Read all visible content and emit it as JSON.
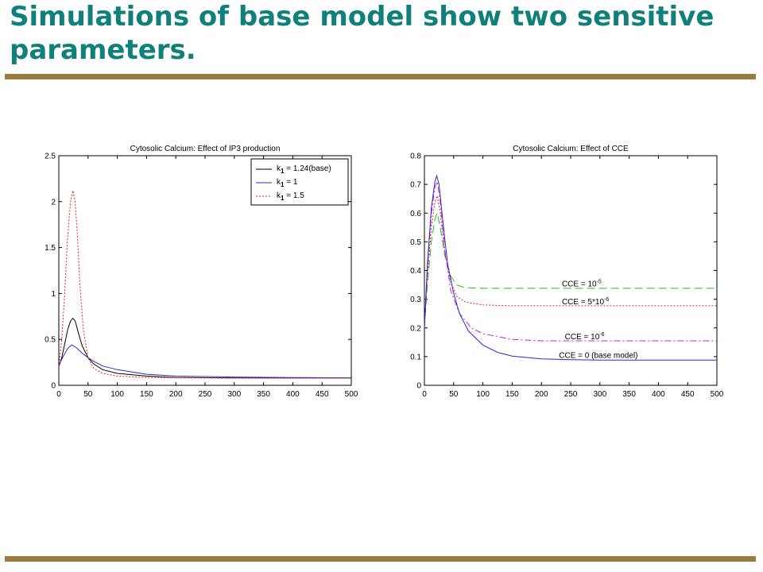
{
  "slide": {
    "title": "Simulations of base model show two sensitive parameters.",
    "accent_color": "#10807a",
    "rule_color": "#9b7c3e"
  },
  "chart_data": [
    {
      "type": "line",
      "title": "Cytosolic Calcium: Effect of IP3 production",
      "xlabel": "",
      "ylabel": "",
      "xlim": [
        0,
        500
      ],
      "ylim": [
        0,
        2.5
      ],
      "xticks": [
        "0",
        "50",
        "100",
        "150",
        "200",
        "250",
        "300",
        "350",
        "400",
        "450",
        "500"
      ],
      "yticks": [
        "0",
        "0.5",
        "1",
        "1.5",
        "2",
        "2.5"
      ],
      "grid": false,
      "legend_position": "top-right",
      "series": [
        {
          "legend_parts": [
            "k",
            "1",
            " = 1.24(base)"
          ],
          "color": "#000000",
          "dash": "none",
          "points": [
            [
              0,
              0.2
            ],
            [
              5,
              0.3
            ],
            [
              10,
              0.45
            ],
            [
              15,
              0.6
            ],
            [
              20,
              0.7
            ],
            [
              24,
              0.73
            ],
            [
              28,
              0.7
            ],
            [
              33,
              0.58
            ],
            [
              40,
              0.43
            ],
            [
              50,
              0.3
            ],
            [
              60,
              0.23
            ],
            [
              75,
              0.17
            ],
            [
              100,
              0.13
            ],
            [
              150,
              0.1
            ],
            [
              200,
              0.085
            ],
            [
              300,
              0.08
            ],
            [
              400,
              0.08
            ],
            [
              500,
              0.08
            ]
          ]
        },
        {
          "legend_parts": [
            "k",
            "1",
            " = 1"
          ],
          "color": "#2a2ad0",
          "dash": "none",
          "points": [
            [
              0,
              0.22
            ],
            [
              8,
              0.32
            ],
            [
              15,
              0.4
            ],
            [
              22,
              0.44
            ],
            [
              30,
              0.41
            ],
            [
              40,
              0.35
            ],
            [
              50,
              0.3
            ],
            [
              60,
              0.26
            ],
            [
              75,
              0.21
            ],
            [
              100,
              0.17
            ],
            [
              150,
              0.12
            ],
            [
              200,
              0.1
            ],
            [
              300,
              0.09
            ],
            [
              400,
              0.085
            ],
            [
              500,
              0.08
            ]
          ]
        },
        {
          "legend_parts": [
            "k",
            "1",
            " = 1.5"
          ],
          "color": "#e02020",
          "dash": "2,2",
          "points": [
            [
              0,
              0.2
            ],
            [
              5,
              0.5
            ],
            [
              10,
              1.0
            ],
            [
              15,
              1.6
            ],
            [
              20,
              2.0
            ],
            [
              24,
              2.12
            ],
            [
              28,
              2.0
            ],
            [
              32,
              1.6
            ],
            [
              36,
              1.1
            ],
            [
              42,
              0.6
            ],
            [
              50,
              0.3
            ],
            [
              60,
              0.18
            ],
            [
              75,
              0.13
            ],
            [
              100,
              0.1
            ],
            [
              150,
              0.085
            ],
            [
              300,
              0.08
            ],
            [
              500,
              0.08
            ]
          ]
        }
      ]
    },
    {
      "type": "line",
      "title": "Cytosolic Calcium: Effect of CCE",
      "xlabel": "",
      "ylabel": "",
      "xlim": [
        0,
        500
      ],
      "ylim": [
        0,
        0.8
      ],
      "xticks": [
        "0",
        "50",
        "100",
        "150",
        "200",
        "250",
        "300",
        "350",
        "400",
        "450",
        "500"
      ],
      "yticks": [
        "0",
        "0.1",
        "0.2",
        "0.3",
        "0.4",
        "0.5",
        "0.6",
        "0.7",
        "0.8"
      ],
      "grid": false,
      "series": [
        {
          "color": "#20c020",
          "dash": "10,5",
          "points": [
            [
              0,
              0.2
            ],
            [
              5,
              0.35
            ],
            [
              12,
              0.5
            ],
            [
              18,
              0.58
            ],
            [
              22,
              0.6
            ],
            [
              27,
              0.55
            ],
            [
              35,
              0.45
            ],
            [
              45,
              0.38
            ],
            [
              55,
              0.35
            ],
            [
              70,
              0.34
            ],
            [
              100,
              0.338
            ],
            [
              500,
              0.338
            ]
          ]
        },
        {
          "color": "#e02020",
          "dash": "2,2",
          "points": [
            [
              0,
              0.2
            ],
            [
              5,
              0.38
            ],
            [
              12,
              0.55
            ],
            [
              18,
              0.64
            ],
            [
              22,
              0.66
            ],
            [
              27,
              0.6
            ],
            [
              35,
              0.46
            ],
            [
              45,
              0.36
            ],
            [
              55,
              0.31
            ],
            [
              70,
              0.29
            ],
            [
              100,
              0.28
            ],
            [
              150,
              0.277
            ],
            [
              500,
              0.277
            ]
          ]
        },
        {
          "color": "#d020d0",
          "dash": "8,3,2,3",
          "points": [
            [
              0,
              0.2
            ],
            [
              5,
              0.4
            ],
            [
              12,
              0.6
            ],
            [
              18,
              0.69
            ],
            [
              22,
              0.71
            ],
            [
              27,
              0.64
            ],
            [
              35,
              0.47
            ],
            [
              45,
              0.33
            ],
            [
              60,
              0.25
            ],
            [
              80,
              0.2
            ],
            [
              100,
              0.18
            ],
            [
              150,
              0.16
            ],
            [
              200,
              0.155
            ],
            [
              500,
              0.155
            ]
          ]
        },
        {
          "color": "#2a2ad0",
          "dash": "none",
          "points": [
            [
              0,
              0.2
            ],
            [
              5,
              0.42
            ],
            [
              12,
              0.62
            ],
            [
              18,
              0.71
            ],
            [
              21,
              0.73
            ],
            [
              25,
              0.7
            ],
            [
              32,
              0.56
            ],
            [
              40,
              0.42
            ],
            [
              50,
              0.32
            ],
            [
              60,
              0.25
            ],
            [
              75,
              0.19
            ],
            [
              100,
              0.14
            ],
            [
              125,
              0.115
            ],
            [
              150,
              0.102
            ],
            [
              200,
              0.092
            ],
            [
              250,
              0.089
            ],
            [
              300,
              0.088
            ],
            [
              500,
              0.088
            ]
          ]
        }
      ],
      "annotations": [
        {
          "parts": [
            "CCE = 10",
            "-5"
          ],
          "x": 235,
          "y": 0.345
        },
        {
          "parts": [
            "CCE = 5*10",
            "-6"
          ],
          "x": 235,
          "y": 0.283
        },
        {
          "parts": [
            "CCE = 10",
            "-6"
          ],
          "x": 240,
          "y": 0.16
        },
        {
          "parts": [
            "CCE = 0 (base model)"
          ],
          "x": 230,
          "y": 0.095
        }
      ]
    }
  ]
}
